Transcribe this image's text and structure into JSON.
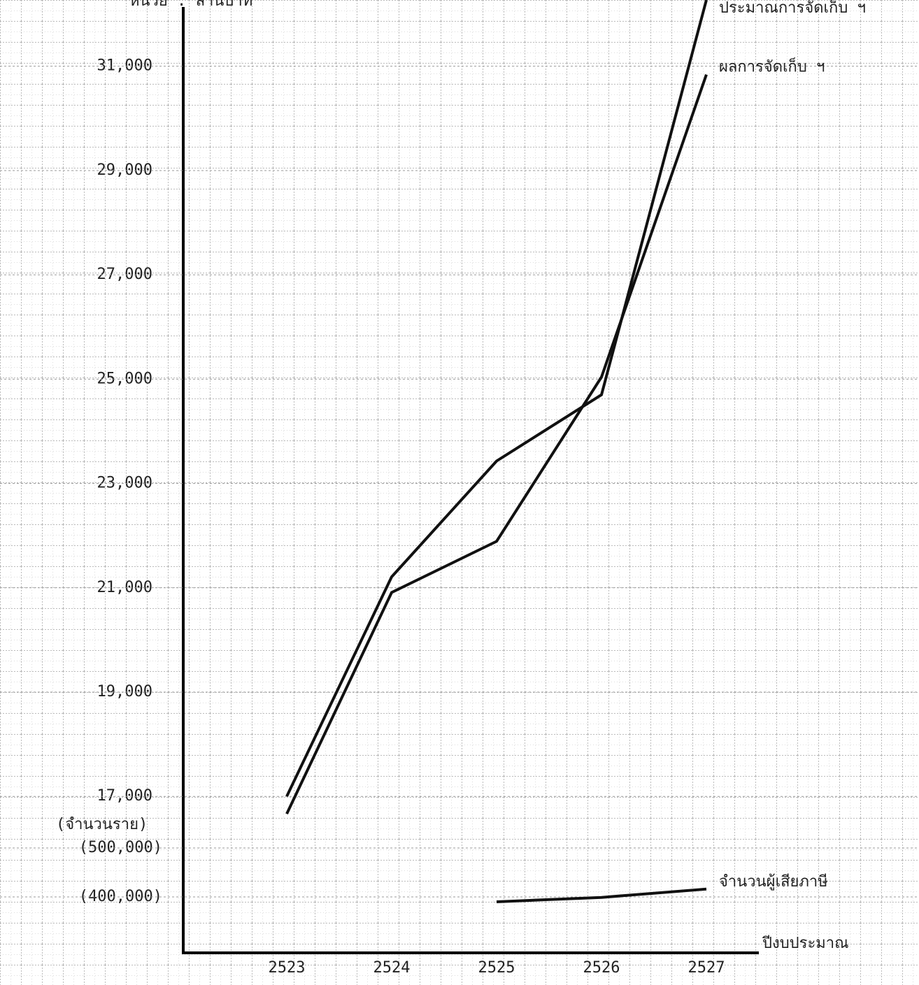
{
  "chart_data": {
    "type": "line",
    "y_axis_label": "หน่วย : ล้านบาท",
    "x_axis_label": "ปีงบประมาณ",
    "y2_axis_label": "(จำนวนราย)",
    "categories": [
      "2523",
      "2524",
      "2525",
      "2526",
      "2527"
    ],
    "series": [
      {
        "name": "ประมาณการจัดเก็บ ฯ",
        "color": "#111111",
        "values": [
          17000,
          21210,
          23430,
          24700,
          32270
        ]
      },
      {
        "name": "ผลการจัดเก็บ ฯ",
        "color": "#111111",
        "values": [
          16665,
          20910,
          21890,
          25040,
          30840
        ]
      },
      {
        "name": "จำนวนผู้เสียภาษี",
        "color": "#111111",
        "axis": "y2",
        "values": [
          null,
          null,
          390000,
          399000,
          416000
        ]
      }
    ],
    "ylim": [
      14000,
      32270
    ],
    "yticks": [
      {
        "value": 17000,
        "label": "17,000"
      },
      {
        "value": 19000,
        "label": "19,000"
      },
      {
        "value": 21000,
        "label": "21,000"
      },
      {
        "value": 23000,
        "label": "23,000"
      },
      {
        "value": 25000,
        "label": "25,000"
      },
      {
        "value": 27000,
        "label": "27,000"
      },
      {
        "value": 29000,
        "label": "29,000"
      },
      {
        "value": 31000,
        "label": "31,000"
      }
    ],
    "y2lim": [
      285700,
      2232900
    ],
    "y2ticks": [
      {
        "value": 400000,
        "label": "(400,000)"
      },
      {
        "value": 500000,
        "label": "(500,000)"
      }
    ],
    "grid": true
  }
}
